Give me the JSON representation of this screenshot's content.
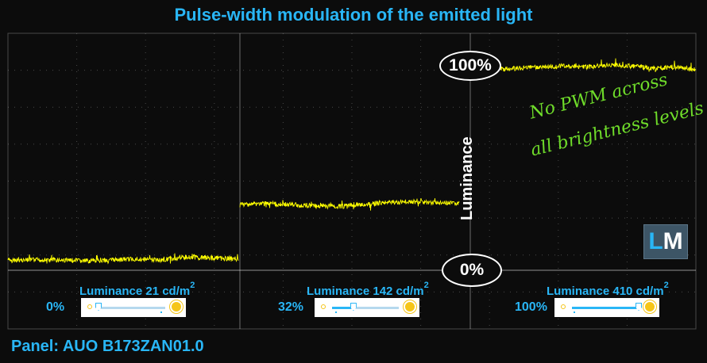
{
  "title": "Pulse-width modulation of the emitted light",
  "panel": "Panel: AUO B173ZAN01.0",
  "annotation": [
    "No PWM across",
    "all brightness levels"
  ],
  "axis_label": "Luminance",
  "level_labels": {
    "top": "100%",
    "bottom": "0%"
  },
  "logo": {
    "l": "L",
    "m": "M"
  },
  "colors": {
    "title": "#29b6f6",
    "trace": "#ffff00",
    "annotation": "#6fdc2a",
    "background": "#0c0c0c"
  },
  "settings": [
    {
      "percent": "0%",
      "label": "Luminance 21 cd/m",
      "sup": "2",
      "slider": 0.0
    },
    {
      "percent": "32%",
      "label": "Luminance 142 cd/m",
      "sup": "2",
      "slider": 0.32
    },
    {
      "percent": "100%",
      "label": "Luminance 410 cd/m",
      "sup": "2",
      "slider": 1.0
    }
  ],
  "chart_data": {
    "type": "line",
    "title": "Pulse-width modulation of the emitted light",
    "ylabel": "Luminance",
    "ylim": [
      0,
      100
    ],
    "grid": true,
    "series": [
      {
        "brightness_setting": "0%",
        "luminance_cd_m2": 21,
        "values": [
          5,
          5,
          5,
          4.5,
          5,
          5.5,
          5,
          6.5,
          6,
          5.5
        ]
      },
      {
        "brightness_setting": "32%",
        "luminance_cd_m2": 142,
        "values": [
          32,
          32.5,
          32,
          31.5,
          31,
          32,
          33,
          33.5,
          33,
          32.5
        ]
      },
      {
        "brightness_setting": "100%",
        "luminance_cd_m2": 410,
        "values": [
          98,
          98.5,
          99,
          99.5,
          99,
          100,
          99.5,
          98.5,
          99,
          98
        ]
      }
    ]
  }
}
